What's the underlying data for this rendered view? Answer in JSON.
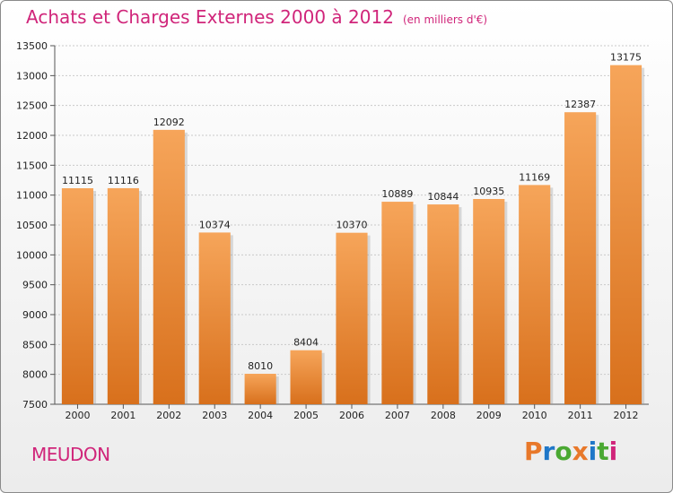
{
  "header": {
    "title": "Achats et Charges Externes 2000 à 2012",
    "subtitle": "(en milliers d'€)"
  },
  "footer": {
    "city": "MEUDON",
    "logo": {
      "text": "Proxiti",
      "letters": [
        "P",
        "r",
        "o",
        "x",
        "i",
        "t",
        "i"
      ],
      "colors": [
        "#e8782a",
        "#1f77c8",
        "#4aa832",
        "#e8782a",
        "#1f77c8",
        "#4aa832",
        "#d0257a"
      ]
    }
  },
  "colors": {
    "bar": "#e8882e",
    "title": "#d0257a"
  },
  "chart_data": {
    "type": "bar",
    "title": "Achats et Charges Externes 2000 à 2012",
    "subtitle": "(en milliers d'€)",
    "categories": [
      "2000",
      "2001",
      "2002",
      "2003",
      "2004",
      "2005",
      "2006",
      "2007",
      "2008",
      "2009",
      "2010",
      "2011",
      "2012"
    ],
    "values": [
      11115,
      11116,
      12092,
      10374,
      8010,
      8404,
      10370,
      10889,
      10844,
      10935,
      11169,
      12387,
      13175
    ],
    "data_labels": [
      "11115",
      "11116",
      "12092",
      "10374",
      "8010",
      "8404",
      "10370",
      "10889",
      "10844",
      "10935",
      "11169",
      "12387",
      "13175"
    ],
    "ylim": [
      7500,
      13500
    ],
    "yticks": [
      7500,
      8000,
      8500,
      9000,
      9500,
      10000,
      10500,
      11000,
      11500,
      12000,
      12500,
      13000,
      13500
    ],
    "ytick_labels": [
      "7500",
      "8000",
      "8500",
      "9000",
      "9500",
      "10000",
      "10500",
      "11000",
      "11500",
      "12000",
      "12500",
      "13000",
      "13500"
    ],
    "grid": true,
    "xlabel": "",
    "ylabel": ""
  }
}
